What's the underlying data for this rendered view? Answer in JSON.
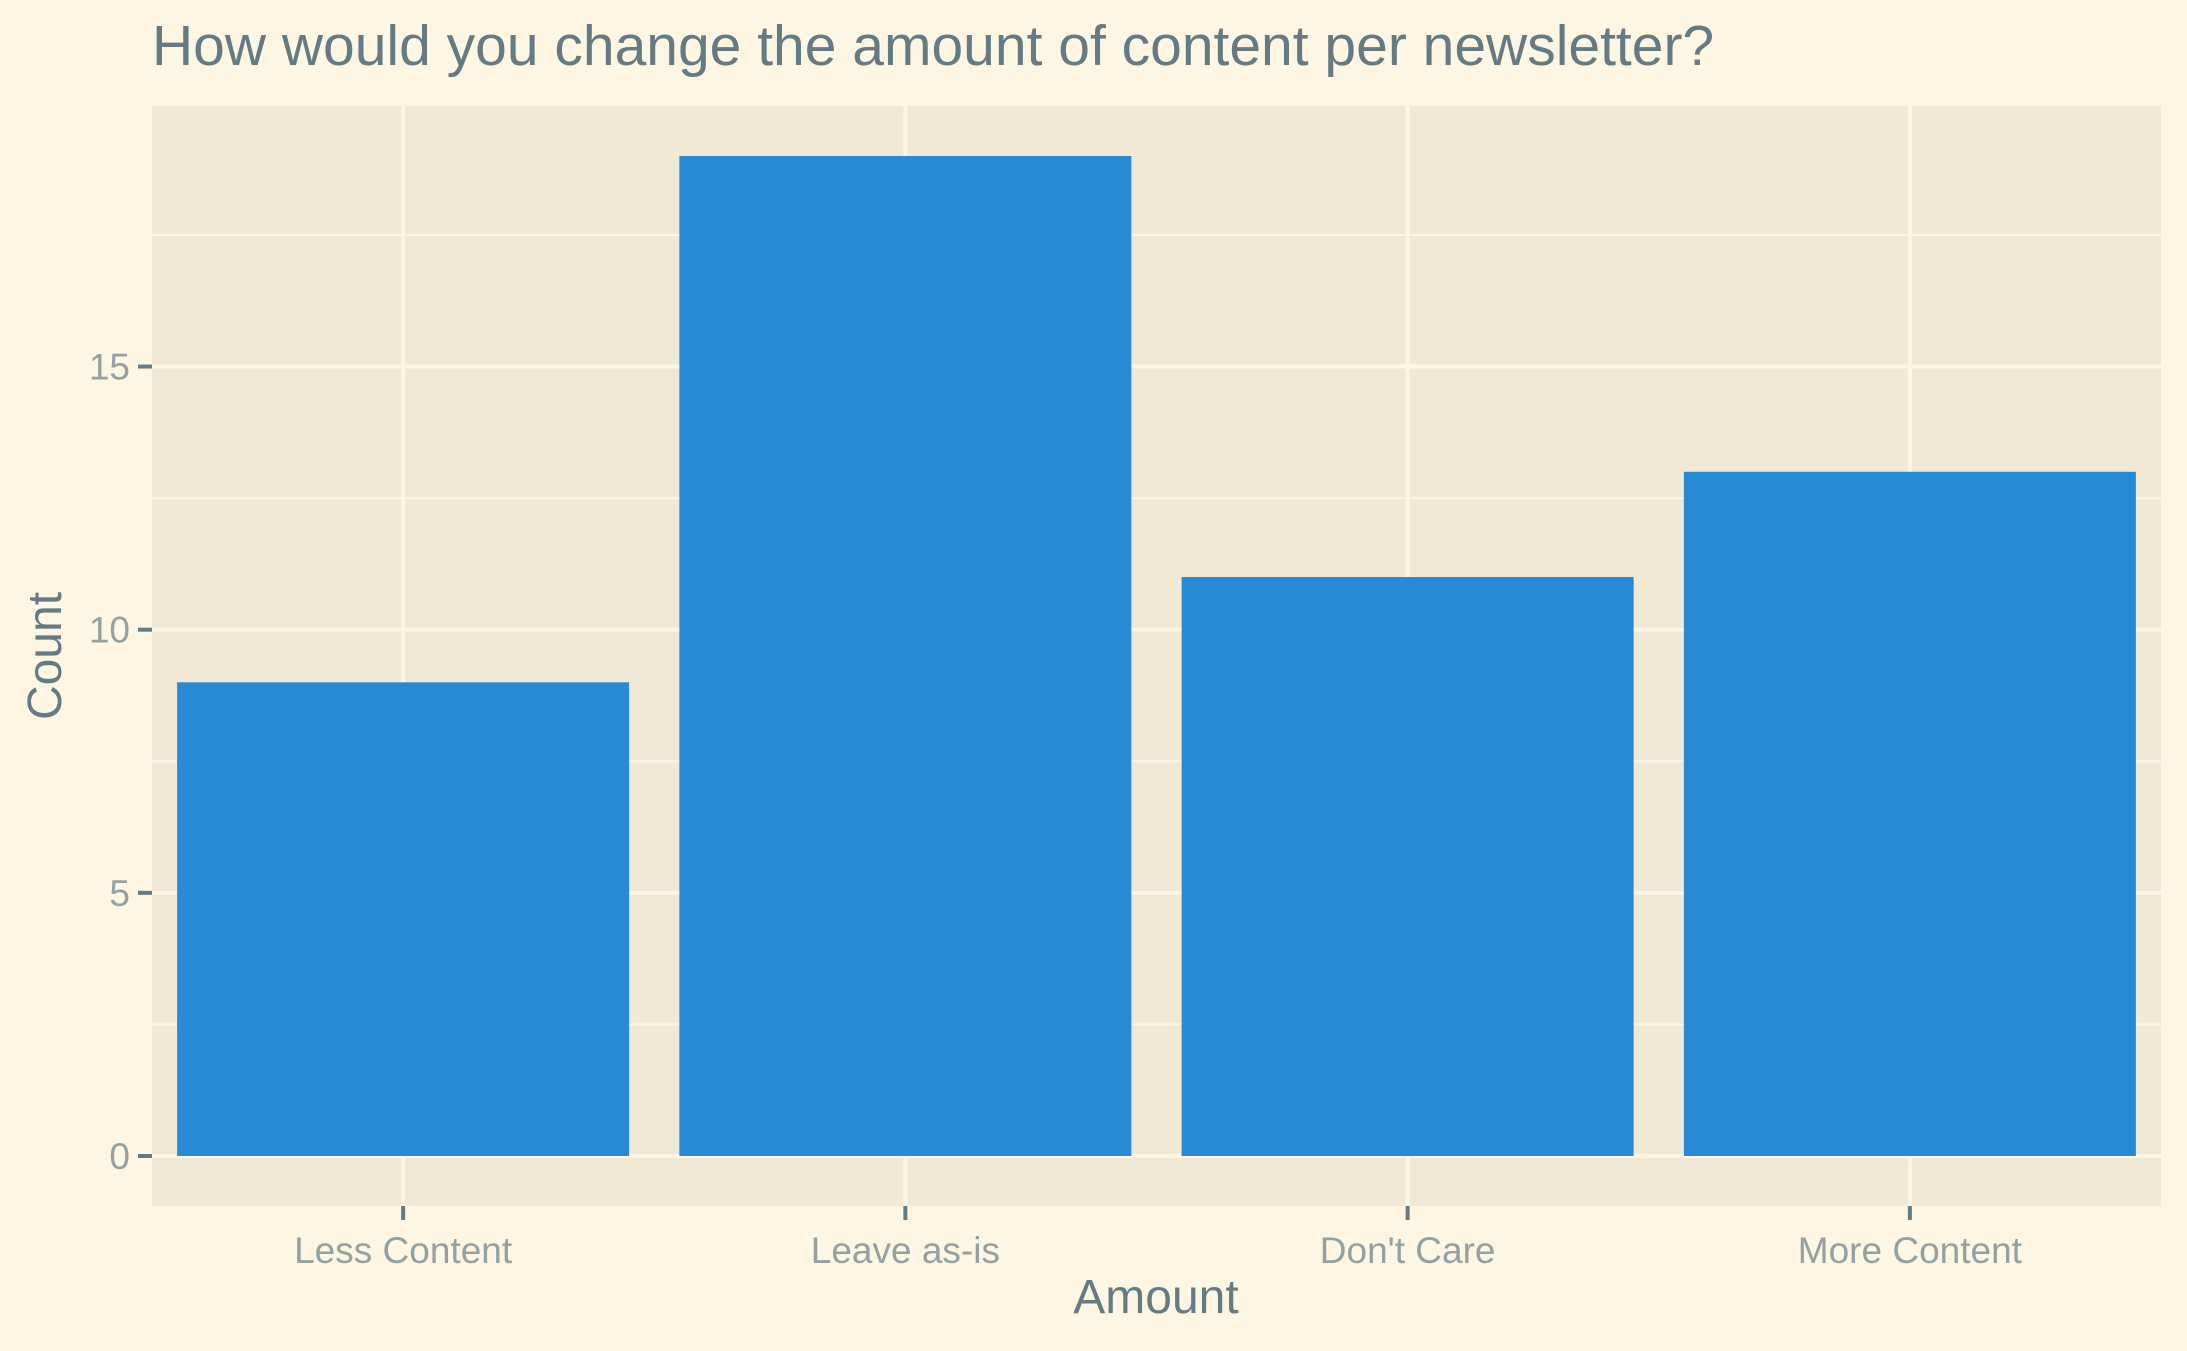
{
  "chart_data": {
    "type": "bar",
    "title": "How would you change the amount of content per newsletter?",
    "xlabel": "Amount",
    "ylabel": "Count",
    "categories": [
      "Less Content",
      "Leave as-is",
      "Don't Care",
      "More Content"
    ],
    "values": [
      9,
      19,
      11,
      13
    ],
    "ylim": [
      -0.95,
      19.95
    ],
    "y_ticks": [
      0,
      5,
      10,
      15
    ],
    "y_tick_labels": [
      "0",
      "5",
      "10",
      "15"
    ],
    "grid": true,
    "legend": "none"
  },
  "colors": {
    "page_background": "#fdf6e3",
    "panel_background": "#f0e9d6",
    "grid": "#fdf6e3",
    "bar": "#268bd2",
    "title": "#657b83",
    "axis_title": "#657b83",
    "tick_label": "#93a1a1",
    "tick_mark": "#657b83"
  }
}
